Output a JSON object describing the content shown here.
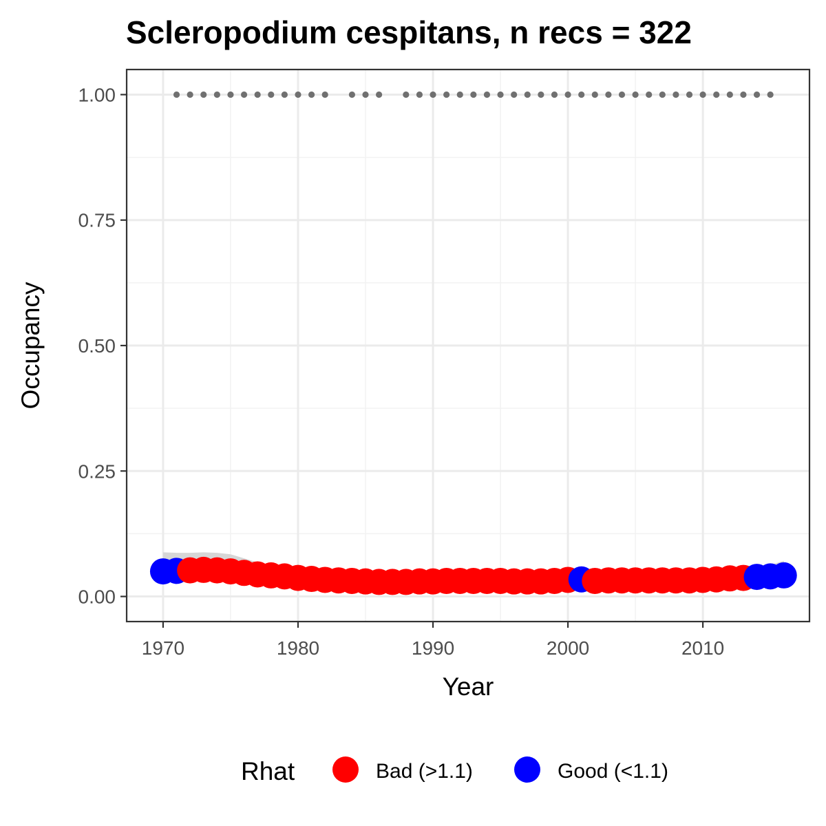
{
  "chart_data": {
    "type": "scatter",
    "title": "Scleropodium cespitans, n recs = 322",
    "xlabel": "Year",
    "ylabel": "Occupancy",
    "xlim": [
      1967.3,
      2017.9
    ],
    "ylim": [
      -0.05,
      1.05
    ],
    "x_ticks": [
      1970,
      1980,
      1990,
      2000,
      2010
    ],
    "x_tick_labels": [
      "1970",
      "1980",
      "1990",
      "2000",
      "2010"
    ],
    "y_ticks": [
      0.0,
      0.25,
      0.5,
      0.75,
      1.0
    ],
    "y_tick_labels": [
      "0.00",
      "0.25",
      "0.50",
      "0.75",
      "1.00"
    ],
    "grid": true,
    "legend": {
      "title": "Rhat",
      "position": "bottom",
      "entries": [
        {
          "label": "Bad (>1.1)",
          "color": "#ff0000"
        },
        {
          "label": "Good (<1.1)",
          "color": "#0000ff"
        }
      ]
    },
    "record_years": [
      1971,
      1972,
      1973,
      1974,
      1975,
      1976,
      1977,
      1978,
      1979,
      1980,
      1981,
      1982,
      1984,
      1985,
      1986,
      1988,
      1989,
      1990,
      1991,
      1992,
      1993,
      1994,
      1995,
      1996,
      1997,
      1998,
      1999,
      2000,
      2001,
      2002,
      2003,
      2004,
      2005,
      2006,
      2007,
      2008,
      2009,
      2010,
      2011,
      2012,
      2013,
      2014,
      2015
    ],
    "record_value": 1.0,
    "series": [
      {
        "x": [
          1970,
          1971,
          1972,
          1973,
          1974,
          1975,
          1976,
          1977,
          1978,
          1979,
          1980,
          1981,
          1982,
          1983,
          1984,
          1985,
          1986,
          1987,
          1988,
          1989,
          1990,
          1991,
          1992,
          1993,
          1994,
          1995,
          1996,
          1997,
          1998,
          1999,
          2000,
          2001,
          2002,
          2003,
          2004,
          2005,
          2006,
          2007,
          2008,
          2009,
          2010,
          2011,
          2012,
          2013,
          2014,
          2015,
          2016
        ],
        "y": [
          0.05,
          0.051,
          0.052,
          0.053,
          0.052,
          0.05,
          0.047,
          0.044,
          0.042,
          0.04,
          0.037,
          0.035,
          0.033,
          0.032,
          0.031,
          0.03,
          0.029,
          0.029,
          0.029,
          0.03,
          0.03,
          0.031,
          0.031,
          0.031,
          0.031,
          0.031,
          0.03,
          0.03,
          0.03,
          0.031,
          0.033,
          0.034,
          0.031,
          0.032,
          0.032,
          0.032,
          0.032,
          0.032,
          0.032,
          0.032,
          0.033,
          0.034,
          0.036,
          0.037,
          0.039,
          0.04,
          0.042
        ],
        "rhat": [
          "Good",
          "Good",
          "Bad",
          "Bad",
          "Bad",
          "Bad",
          "Bad",
          "Bad",
          "Bad",
          "Bad",
          "Bad",
          "Bad",
          "Bad",
          "Bad",
          "Bad",
          "Bad",
          "Bad",
          "Bad",
          "Bad",
          "Bad",
          "Bad",
          "Bad",
          "Bad",
          "Bad",
          "Bad",
          "Bad",
          "Bad",
          "Bad",
          "Bad",
          "Bad",
          "Bad",
          "Good",
          "Bad",
          "Bad",
          "Bad",
          "Bad",
          "Bad",
          "Bad",
          "Bad",
          "Bad",
          "Bad",
          "Bad",
          "Bad",
          "Bad",
          "Good",
          "Good",
          "Good"
        ],
        "upper": [
          0.088,
          0.087,
          0.087,
          0.088,
          0.087,
          0.084,
          0.076,
          0.068,
          0.06,
          0.052,
          0.045,
          0.04,
          0.036,
          0.034,
          0.033,
          0.032,
          0.031,
          0.031,
          0.031,
          0.032,
          0.032,
          0.033,
          0.033,
          0.033,
          0.033,
          0.033,
          0.032,
          0.032,
          0.032,
          0.033,
          0.035,
          0.038,
          0.036,
          0.036,
          0.036,
          0.036,
          0.036,
          0.036,
          0.036,
          0.037,
          0.038,
          0.04,
          0.044,
          0.049,
          0.056,
          0.063,
          0.071
        ],
        "lower": [
          0.03,
          0.032,
          0.034,
          0.036,
          0.037,
          0.036,
          0.034,
          0.032,
          0.03,
          0.028,
          0.027,
          0.026,
          0.025,
          0.025,
          0.025,
          0.024,
          0.024,
          0.024,
          0.024,
          0.025,
          0.025,
          0.025,
          0.026,
          0.026,
          0.026,
          0.026,
          0.026,
          0.025,
          0.025,
          0.026,
          0.027,
          0.027,
          0.026,
          0.027,
          0.027,
          0.027,
          0.027,
          0.027,
          0.027,
          0.027,
          0.027,
          0.027,
          0.027,
          0.026,
          0.025,
          0.024,
          0.022
        ]
      }
    ]
  }
}
